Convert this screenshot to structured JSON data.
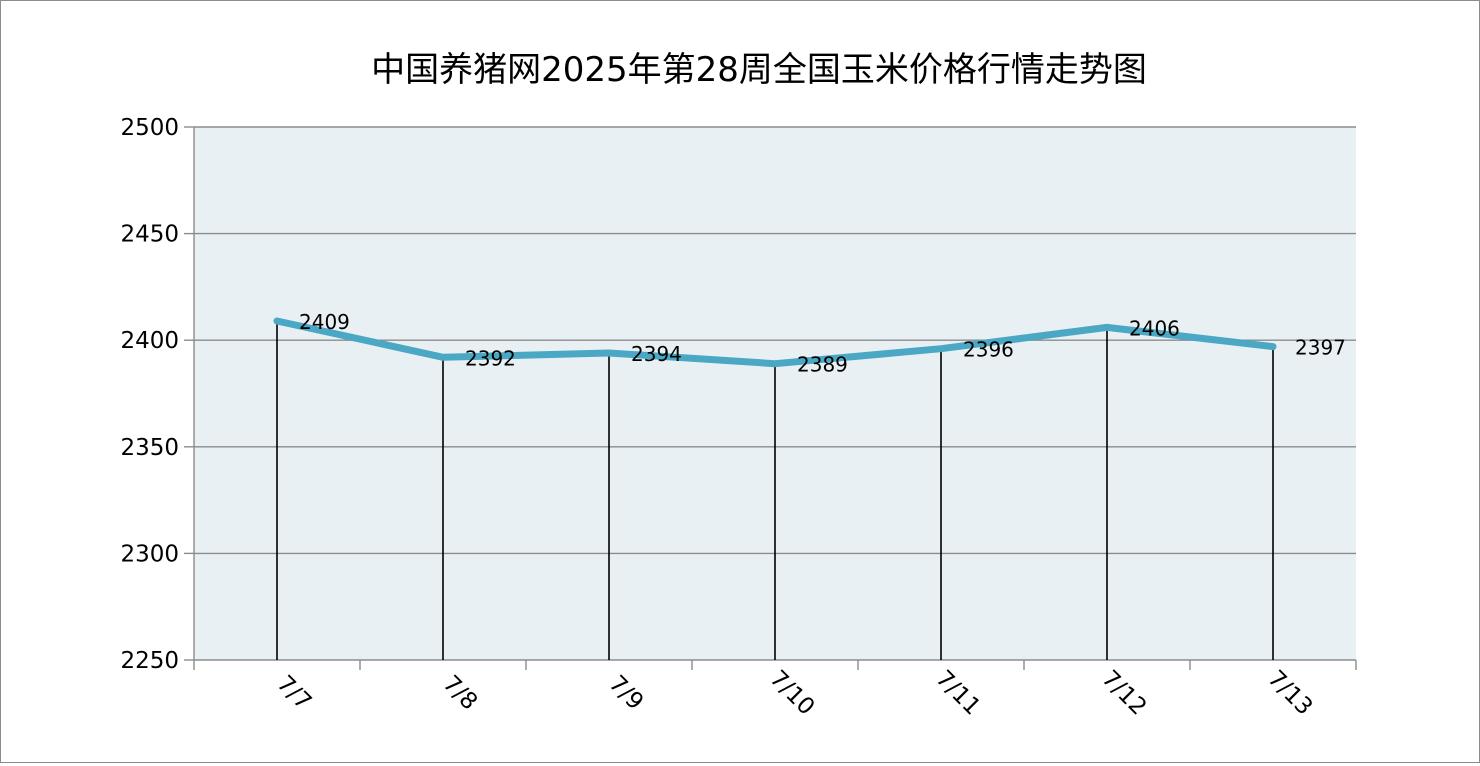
{
  "chart_data": {
    "type": "line",
    "title": "中国养猪网2025年第28周全国玉米价格行情走势图",
    "categories": [
      "7/7",
      "7/8",
      "7/9",
      "7/10",
      "7/11",
      "7/12",
      "7/13"
    ],
    "series": [
      {
        "values": [
          2409,
          2392,
          2394,
          2389,
          2396,
          2406,
          2397
        ]
      }
    ],
    "data_labels": [
      "2409",
      "2392",
      "2394",
      "2389",
      "2396",
      "2406",
      "2397"
    ],
    "ylim": [
      2250,
      2500
    ],
    "yticks": [
      2250,
      2300,
      2350,
      2400,
      2450,
      2500
    ],
    "ytick_labels": [
      "2250",
      "2300",
      "2350",
      "2400",
      "2450",
      "2500"
    ],
    "grid": true,
    "drop_lines": true,
    "legend": "none",
    "colors": {
      "line": "#4aa8c4",
      "plot_background": "#e9f0f4",
      "grid": "#8c8c8c",
      "drop_line": "#000000",
      "text": "#000000"
    }
  }
}
